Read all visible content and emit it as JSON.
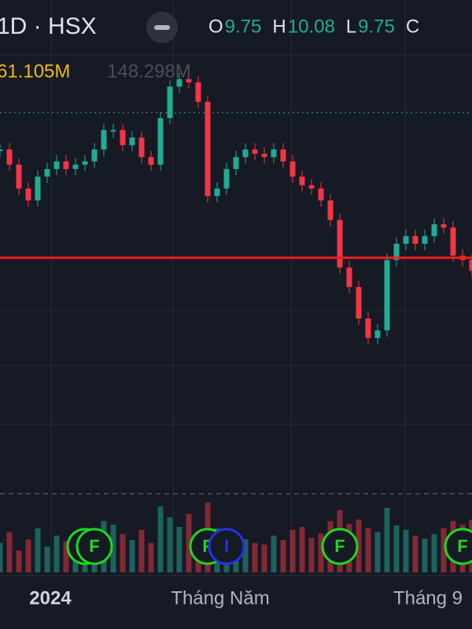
{
  "header": {
    "symbol": "1D · HSX",
    "ohlc": [
      {
        "label": "O",
        "value": "9.75"
      },
      {
        "label": "H",
        "value": "10.08"
      },
      {
        "label": "L",
        "value": "9.75"
      },
      {
        "label": "C",
        "value": ""
      }
    ],
    "volume": "61.105M",
    "volume_ma": "148.298M"
  },
  "chart_data": {
    "type": "candlestick",
    "values": [
      10.62,
      10.48,
      10.26,
      10.15,
      10.37,
      10.44,
      10.51,
      10.44,
      10.48,
      10.51,
      10.62,
      10.8,
      10.8,
      10.66,
      10.73,
      10.55,
      10.48,
      10.91,
      11.2,
      11.27,
      11.24,
      11.06,
      10.19,
      10.26,
      10.44,
      10.55,
      10.62,
      10.58,
      10.55,
      10.62,
      10.51,
      10.37,
      10.29,
      10.26,
      10.15,
      9.97,
      9.53,
      9.35,
      9.06,
      8.88,
      8.95,
      9.6,
      9.75,
      9.82,
      9.75,
      9.82,
      9.93,
      9.9,
      9.64,
      9.6,
      9.5
    ],
    "volumes": [
      40,
      55,
      30,
      45,
      60,
      35,
      50,
      42,
      38,
      55,
      48,
      70,
      65,
      52,
      44,
      58,
      40,
      90,
      75,
      62,
      80,
      55,
      95,
      60,
      48,
      52,
      45,
      40,
      38,
      50,
      44,
      58,
      62,
      47,
      53,
      70,
      85,
      66,
      72,
      60,
      55,
      88,
      64,
      58,
      50,
      46,
      52,
      60,
      70,
      65,
      72
    ],
    "ylim": [
      7.5,
      12.0
    ],
    "vlim": [
      0,
      300
    ],
    "price_line": 9.62,
    "ref_line": 10.96,
    "up_color": "#22ab94",
    "down_color": "#f23645",
    "x_labels": [
      {
        "x": 0,
        "label": "2024"
      },
      {
        "x": 18,
        "label": "Tháng Năm"
      },
      {
        "x": 40,
        "label": "Tháng 9"
      }
    ],
    "events": [
      {
        "x": 9,
        "label": "F"
      },
      {
        "x": 10,
        "label": "F"
      },
      {
        "x": 22,
        "label": "F"
      },
      {
        "x": 24,
        "label": "I"
      },
      {
        "x": 36,
        "label": "F"
      },
      {
        "x": 49,
        "label": "F"
      }
    ]
  }
}
